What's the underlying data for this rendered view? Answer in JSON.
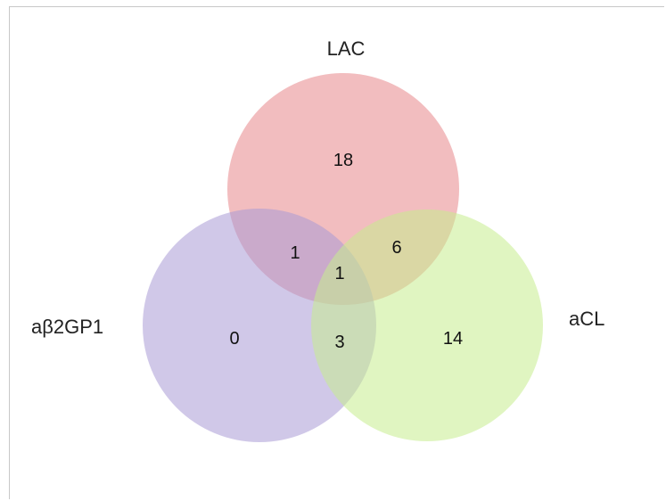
{
  "sets": {
    "lac": {
      "label": "LAC",
      "color": "#e8868a"
    },
    "abeta2gp1": {
      "label": "aβ2GP1",
      "color": "#a99ad6"
    },
    "acl": {
      "label": "aCL",
      "color": "#c7ec8e"
    }
  },
  "regions": {
    "lac_only": "18",
    "abeta2gp1_only": "0",
    "acl_only": "14",
    "lac_abeta2gp1": "1",
    "lac_acl": "6",
    "abeta2gp1_acl": "3",
    "all_three": "1"
  }
}
